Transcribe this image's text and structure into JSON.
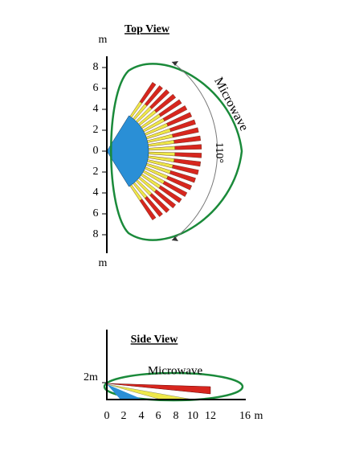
{
  "top_view": {
    "title": "Top View",
    "unit_top": "m",
    "unit_bottom": "m",
    "y_labels": [
      "8",
      "6",
      "4",
      "2",
      "0",
      "2",
      "4",
      "6",
      "8"
    ],
    "zone_label": "Microwave",
    "angle_label": "110°"
  },
  "side_view": {
    "title": "Side View",
    "height_label": "2m",
    "zone_label": "Microwave",
    "x_labels": [
      "0",
      "2",
      "4",
      "6",
      "8",
      "10",
      "12",
      "16"
    ],
    "x_unit": "m"
  }
}
